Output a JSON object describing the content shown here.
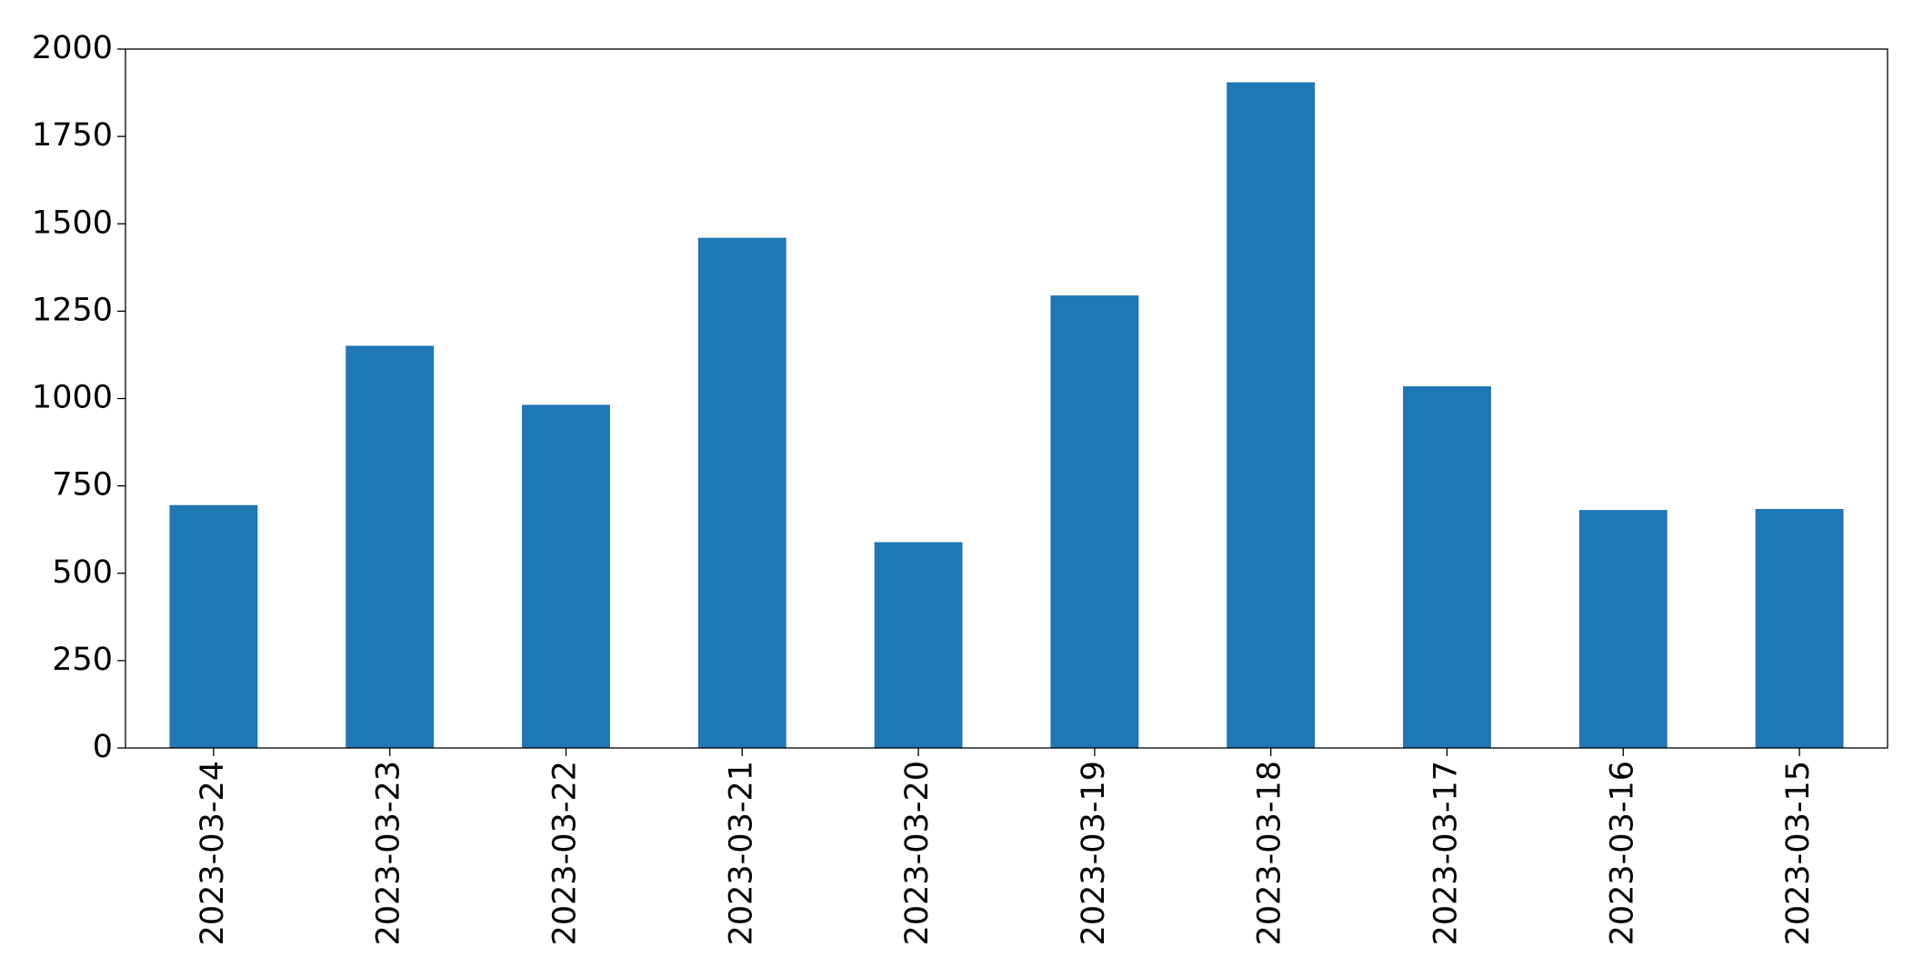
{
  "chart_data": {
    "type": "bar",
    "categories": [
      "2023-03-24",
      "2023-03-23",
      "2023-03-22",
      "2023-03-21",
      "2023-03-20",
      "2023-03-19",
      "2023-03-18",
      "2023-03-17",
      "2023-03-16",
      "2023-03-15"
    ],
    "values": [
      695,
      1151,
      982,
      1460,
      589,
      1295,
      1905,
      1035,
      681,
      684
    ],
    "color": "#1f77b4",
    "ylim": [
      0,
      2000
    ],
    "yticks": [
      0,
      250,
      500,
      750,
      1000,
      1250,
      1500,
      1750,
      2000
    ],
    "grid": false
  }
}
